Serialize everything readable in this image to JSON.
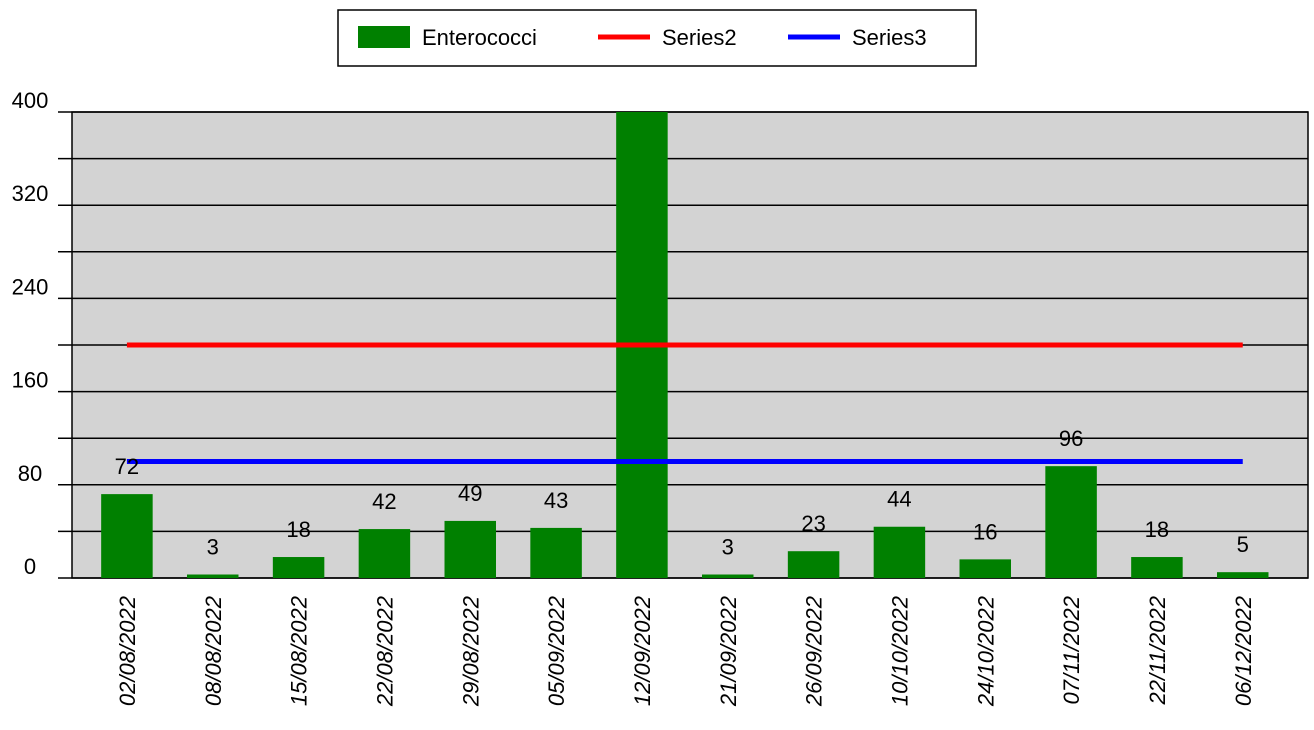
{
  "chart_data": {
    "type": "bar",
    "categories": [
      "02/08/2022",
      "08/08/2022",
      "15/08/2022",
      "22/08/2022",
      "29/08/2022",
      "05/09/2022",
      "12/09/2022",
      "21/09/2022",
      "26/09/2022",
      "10/10/2022",
      "24/10/2022",
      "07/11/2022",
      "22/11/2022",
      "06/12/2022"
    ],
    "series": [
      {
        "name": "Enterococci",
        "kind": "bar",
        "color": "#008000",
        "values": [
          72,
          3,
          18,
          42,
          49,
          43,
          400,
          3,
          23,
          44,
          16,
          96,
          18,
          5
        ],
        "labels": [
          "72",
          "3",
          "18",
          "42",
          "49",
          "43",
          "",
          "3",
          "23",
          "44",
          "16",
          "96",
          "18",
          "5"
        ]
      },
      {
        "name": "Series2",
        "kind": "line",
        "color": "#ff0000",
        "values": [
          200,
          200,
          200,
          200,
          200,
          200,
          200,
          200,
          200,
          200,
          200,
          200,
          200,
          200
        ]
      },
      {
        "name": "Series3",
        "kind": "line",
        "color": "#0000ff",
        "values": [
          100,
          100,
          100,
          100,
          100,
          100,
          100,
          100,
          100,
          100,
          100,
          100,
          100,
          100
        ]
      }
    ],
    "yticks": [
      "0",
      "80",
      "160",
      "240",
      "320",
      "400"
    ],
    "ylim": [
      0,
      400
    ],
    "grid": true,
    "plot_background": "#d3d3d3",
    "legend": {
      "position": "top-center"
    }
  }
}
